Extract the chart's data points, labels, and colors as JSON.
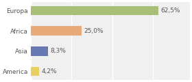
{
  "categories": [
    "Europa",
    "Africa",
    "Asia",
    "America"
  ],
  "values": [
    62.5,
    25.0,
    8.3,
    4.2
  ],
  "labels": [
    "62,5%",
    "25,0%",
    "8,3%",
    "4,2%"
  ],
  "bar_colors": [
    "#a8bf78",
    "#e8aa78",
    "#6878b0",
    "#e8d060"
  ],
  "background_color": "#ffffff",
  "plot_bg_color": "#f0f0f0",
  "xlim": [
    0,
    78
  ],
  "bar_height": 0.45,
  "label_fontsize": 6.5,
  "tick_fontsize": 6.5,
  "grid_color": "#ffffff",
  "text_color": "#555555"
}
